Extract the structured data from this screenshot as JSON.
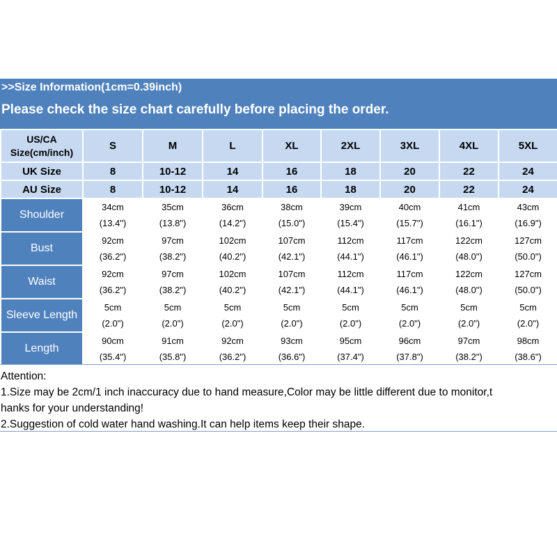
{
  "banner": {
    "line1": ">>Size Information(1cm=0.39inch)",
    "line2": "Please check the size chart carefully before placing the order."
  },
  "table": {
    "header_label_line1": "US/CA",
    "header_label_line2": "Size(cm/inch)",
    "us_sizes": [
      "S",
      "M",
      "L",
      "XL",
      "2XL",
      "3XL",
      "4XL",
      "5XL"
    ],
    "uk_label": "UK Size",
    "uk_sizes": [
      "8",
      "10-12",
      "14",
      "16",
      "18",
      "20",
      "22",
      "24"
    ],
    "au_label": "AU Size",
    "au_sizes": [
      "8",
      "10-12",
      "14",
      "16",
      "18",
      "20",
      "22",
      "24"
    ],
    "rows": [
      {
        "label": "Shoulder",
        "cm": [
          "34cm",
          "35cm",
          "36cm",
          "38cm",
          "39cm",
          "40cm",
          "41cm",
          "43cm"
        ],
        "inch": [
          "(13.4\")",
          "(13.8\")",
          "(14.2\")",
          "(15.0\")",
          "(15.4\")",
          "(15.7\")",
          "(16.1\")",
          "(16.9\")"
        ]
      },
      {
        "label": "Bust",
        "cm": [
          "92cm",
          "97cm",
          "102cm",
          "107cm",
          "112cm",
          "117cm",
          "122cm",
          "127cm"
        ],
        "inch": [
          "(36.2\")",
          "(38.2\")",
          "(40.2\")",
          "(42.1\")",
          "(44.1\")",
          "(46.1\")",
          "(48.0\")",
          "(50.0\")"
        ]
      },
      {
        "label": "Waist",
        "cm": [
          "92cm",
          "97cm",
          "102cm",
          "107cm",
          "112cm",
          "117cm",
          "122cm",
          "127cm"
        ],
        "inch": [
          "(36.2\")",
          "(38.2\")",
          "(40.2\")",
          "(42.1\")",
          "(44.1\")",
          "(46.1\")",
          "(48.0\")",
          "(50.0\")"
        ]
      },
      {
        "label": "Sleeve Length",
        "cm": [
          "5cm",
          "5cm",
          "5cm",
          "5cm",
          "5cm",
          "5cm",
          "5cm",
          "5cm"
        ],
        "inch": [
          "(2.0\")",
          "(2.0\")",
          "(2.0\")",
          "(2.0\")",
          "(2.0\")",
          "(2.0\")",
          "(2.0\")",
          "(2.0\")"
        ]
      },
      {
        "label": "Length",
        "cm": [
          "90cm",
          "91cm",
          "92cm",
          "93cm",
          "95cm",
          "96cm",
          "97cm",
          "98cm"
        ],
        "inch": [
          "(35.4\")",
          "(35.8\")",
          "(36.2\")",
          "(36.6\")",
          "(37.4\")",
          "(37.8\")",
          "(38.2\")",
          "(38.6\")"
        ]
      }
    ]
  },
  "notes": {
    "title": "Attention:",
    "line1": "1.Size may be 2cm/1 inch inaccuracy due to hand measure,Color may be little different due to monitor,t",
    "line2": "hanks for your understanding!",
    "line3": "2.Suggestion of cold water hand washing.It can help items keep their shape."
  },
  "colors": {
    "banner_bg": "#4f81bd",
    "header_bg": "#c6d9f1",
    "row_label_bg": "#4f81bd"
  }
}
